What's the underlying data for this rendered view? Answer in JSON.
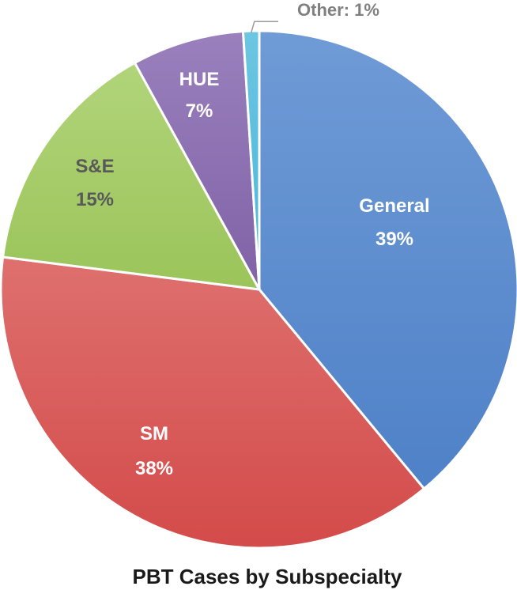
{
  "chart_data": {
    "type": "pie",
    "title": "PBT Cases by Subspecialty",
    "slices": [
      {
        "name": "General",
        "value": 39,
        "value_label": "39%",
        "color": "#4f81c8",
        "color_light": "#6f9bd6",
        "label_color": "#ffffff"
      },
      {
        "name": "SM",
        "value": 38,
        "value_label": "38%",
        "color": "#d34b4a",
        "color_light": "#de706e",
        "label_color": "#ffffff"
      },
      {
        "name": "S&E",
        "value": 15,
        "value_label": "15%",
        "color": "#9bc45a",
        "color_light": "#b1d47a",
        "label_color": "#595959"
      },
      {
        "name": "HUE",
        "value": 7,
        "value_label": "7%",
        "color": "#8062a6",
        "color_light": "#9a80bd",
        "label_color": "#ffffff"
      },
      {
        "name": "Other",
        "value": 1,
        "value_label": "Other: 1%",
        "color": "#4bb6d8",
        "color_light": "#6cc6e2",
        "label_color": "#808080"
      }
    ]
  }
}
